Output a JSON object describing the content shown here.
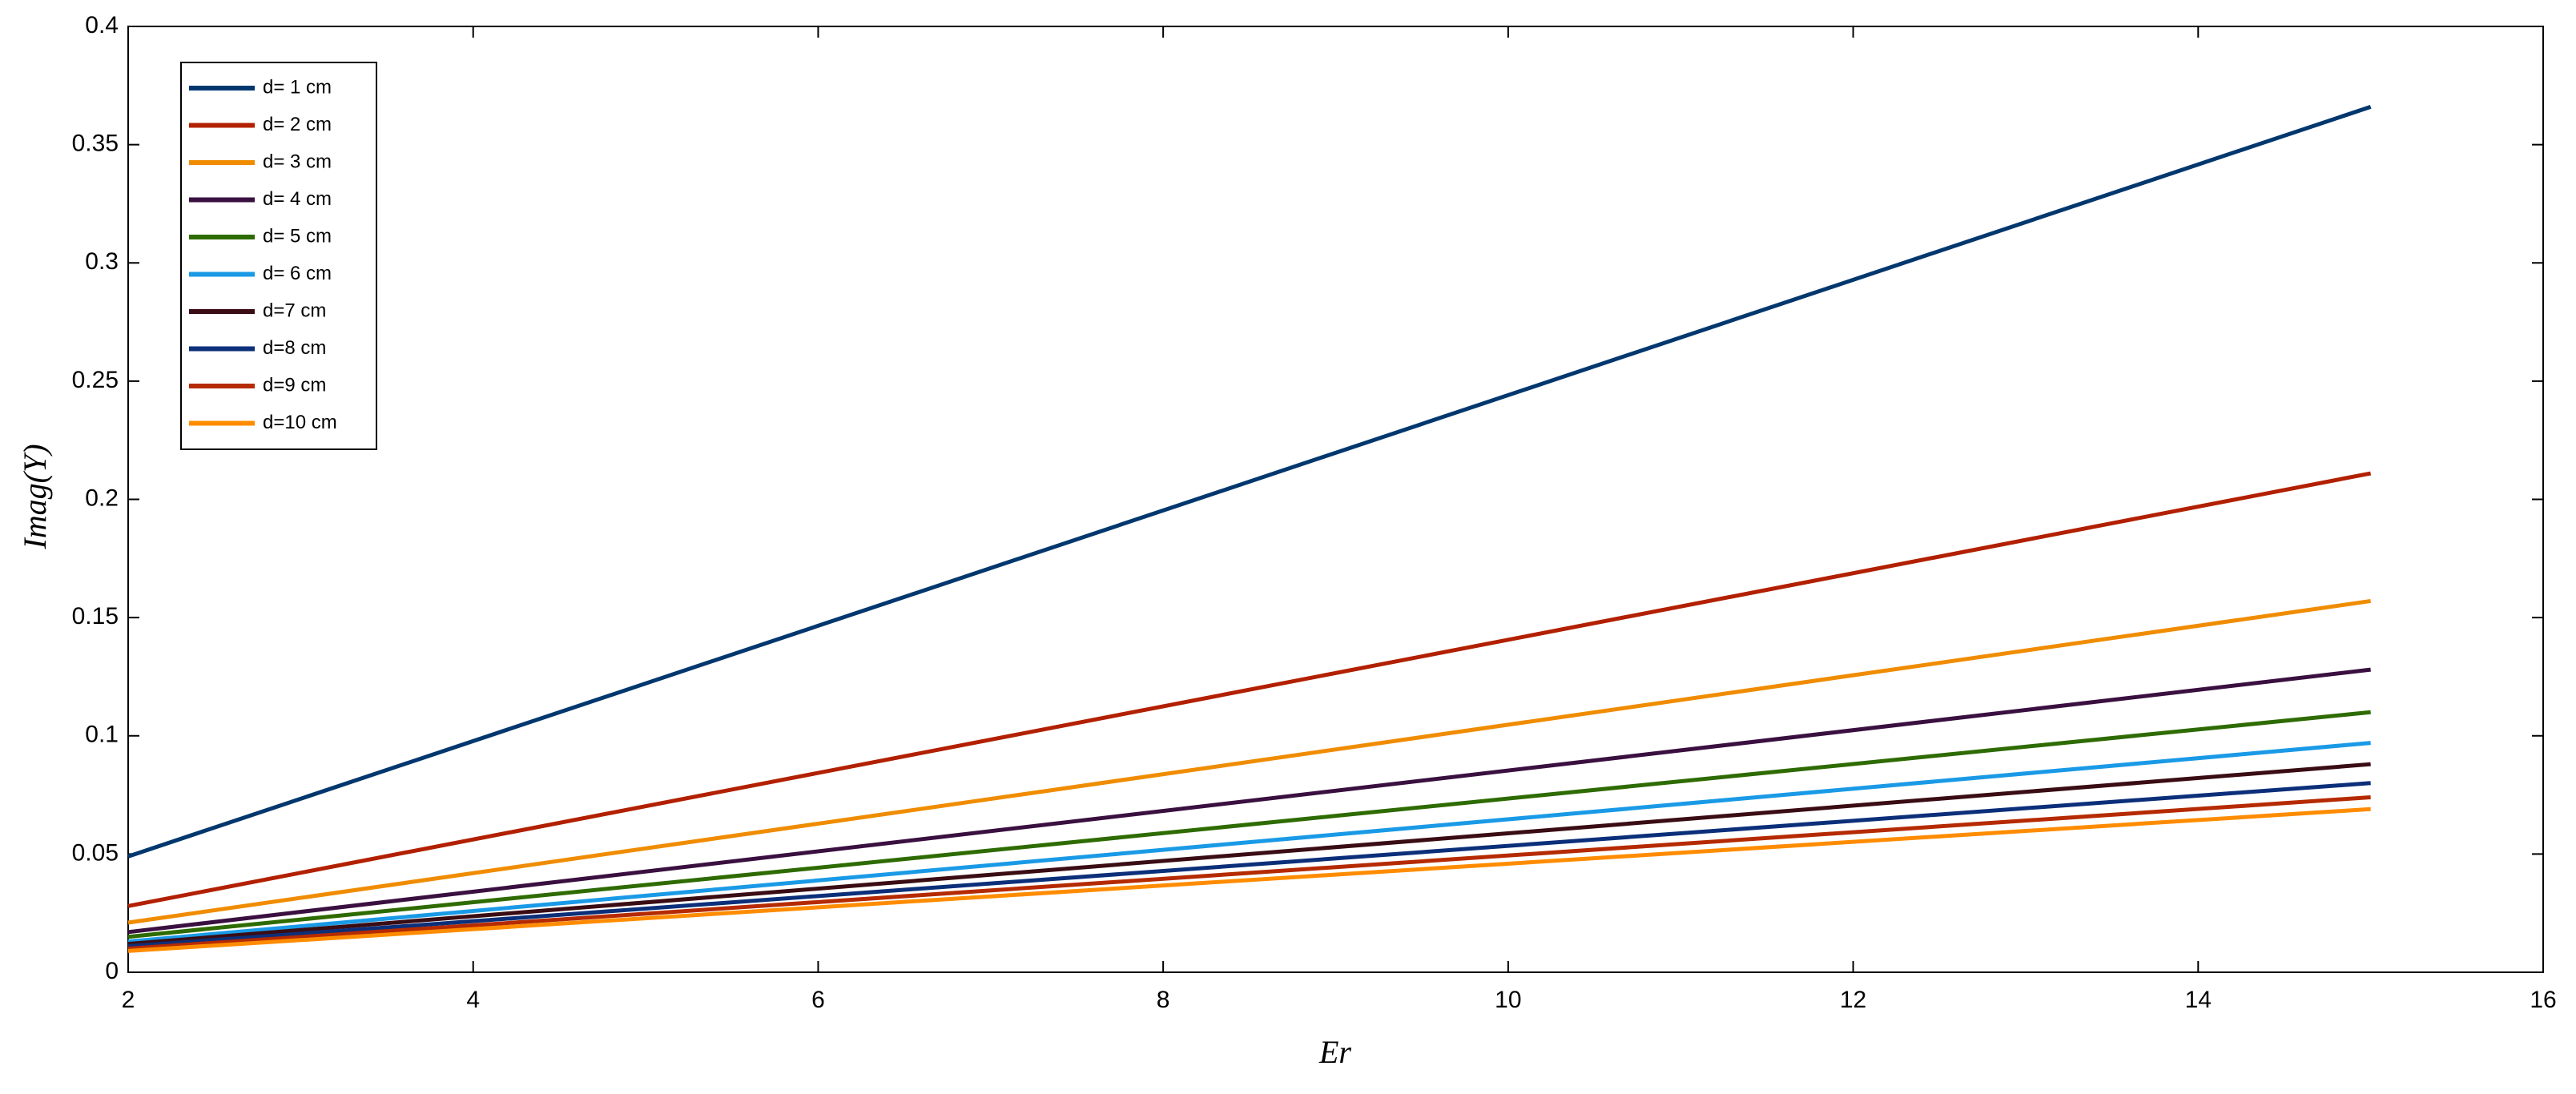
{
  "chart_data": {
    "type": "line",
    "xlabel": "Er",
    "ylabel": "Imag(Y)",
    "x": [
      2,
      15
    ],
    "series": [
      {
        "name": "d= 1 cm",
        "color": "#00376e",
        "values": [
          0.049,
          0.366
        ]
      },
      {
        "name": "d= 2 cm",
        "color": "#b22000",
        "values": [
          0.028,
          0.211
        ]
      },
      {
        "name": "d= 3 cm",
        "color": "#f08c00",
        "values": [
          0.021,
          0.157
        ]
      },
      {
        "name": "d= 4 cm",
        "color": "#3a1040",
        "values": [
          0.017,
          0.128
        ]
      },
      {
        "name": "d= 5 cm",
        "color": "#2e6b00",
        "values": [
          0.015,
          0.11
        ]
      },
      {
        "name": "d= 6 cm",
        "color": "#1a9ae6",
        "values": [
          0.013,
          0.097
        ]
      },
      {
        "name": "d=7 cm",
        "color": "#3a0c14",
        "values": [
          0.012,
          0.088
        ]
      },
      {
        "name": "d=8 cm",
        "color": "#0c2f7a",
        "values": [
          0.011,
          0.08
        ]
      },
      {
        "name": "d=9 cm",
        "color": "#b52a00",
        "values": [
          0.01,
          0.074
        ]
      },
      {
        "name": "d=10 cm",
        "color": "#ff8c00",
        "values": [
          0.009,
          0.069
        ]
      }
    ],
    "xlim": [
      2,
      16
    ],
    "xticks": [
      2,
      4,
      6,
      8,
      10,
      12,
      14,
      16
    ],
    "ylim": [
      0,
      0.4
    ],
    "yticks": [
      0,
      0.05,
      0.1,
      0.15,
      0.2,
      0.25,
      0.3,
      0.35,
      0.4
    ],
    "grid": false,
    "legend": "upper left"
  }
}
